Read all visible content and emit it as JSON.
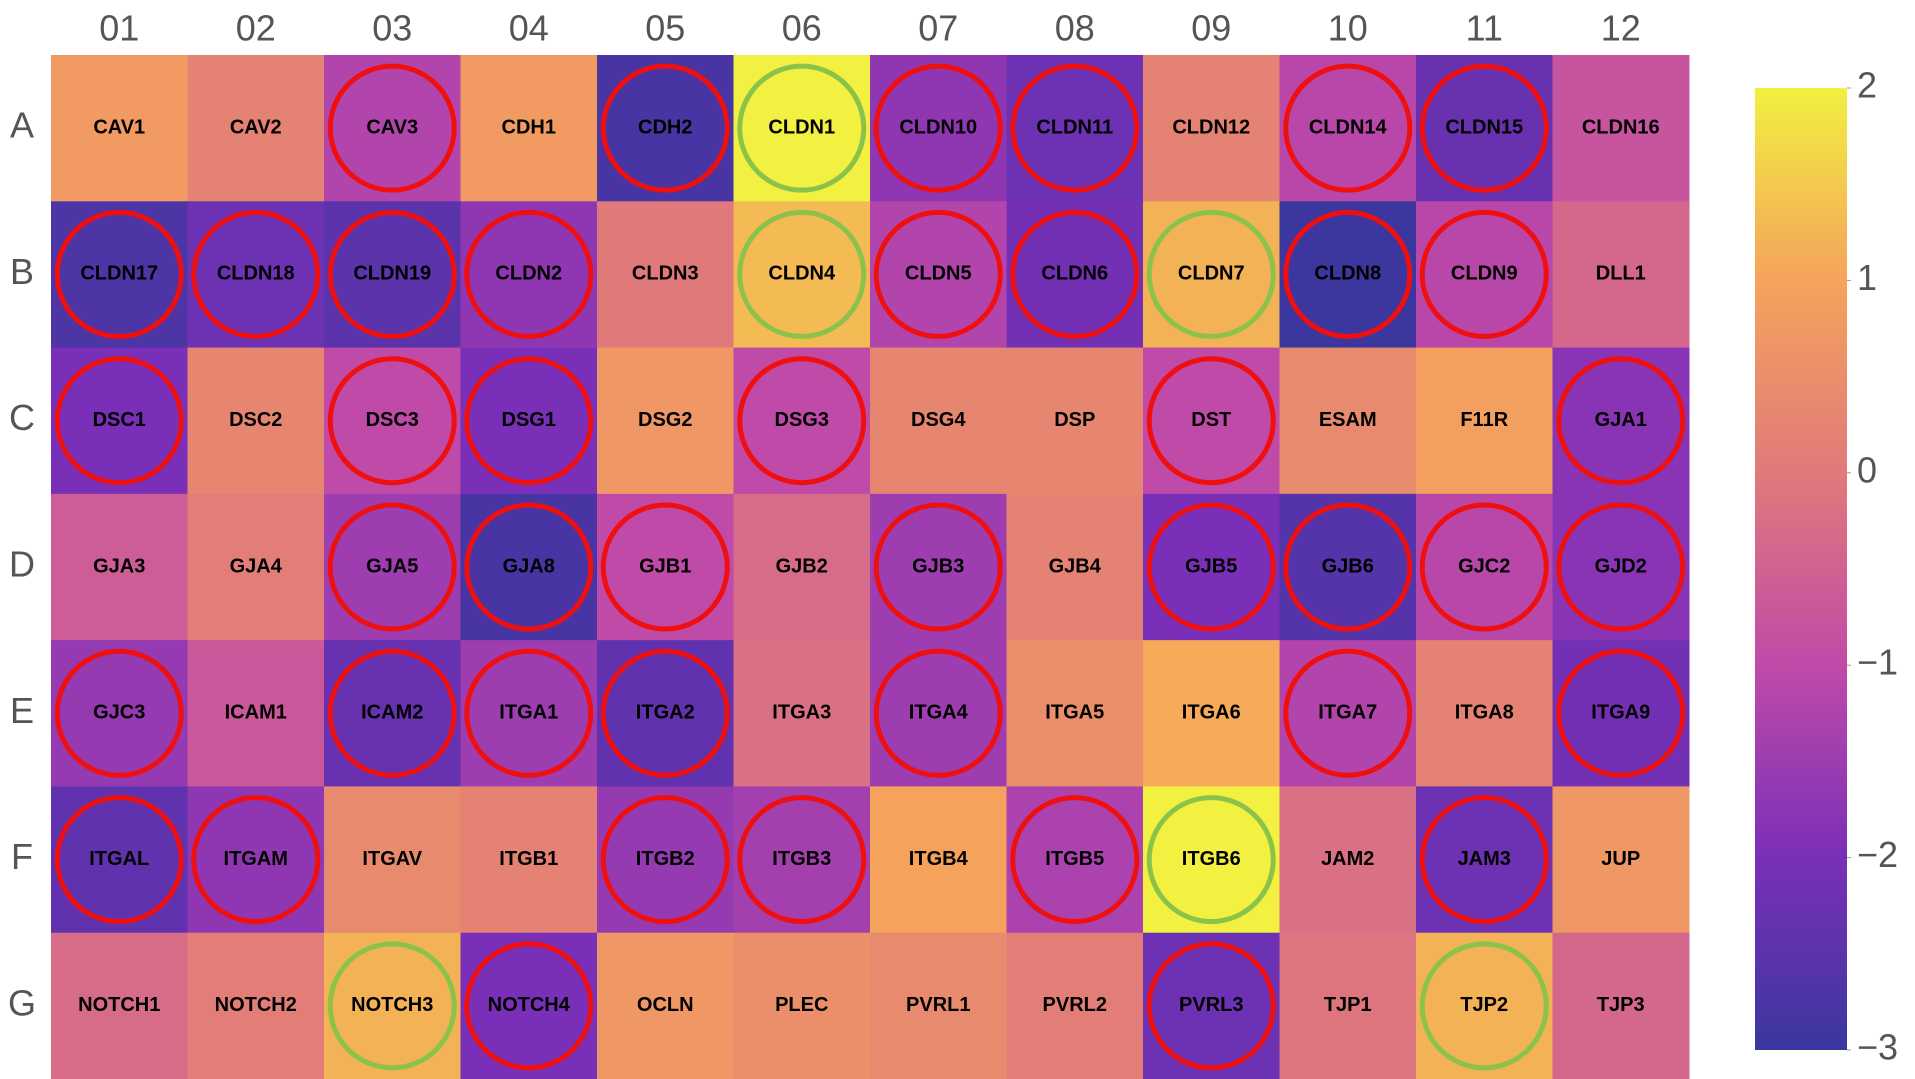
{
  "chart_data": {
    "type": "heatmap",
    "x": [
      "01",
      "02",
      "03",
      "04",
      "05",
      "06",
      "07",
      "08",
      "09",
      "10",
      "11",
      "12"
    ],
    "y": [
      "A",
      "B",
      "C",
      "D",
      "E",
      "F",
      "G"
    ],
    "z": [
      [
        0.8,
        0.2,
        -1.2,
        0.8,
        -2.8,
        2.0,
        -1.7,
        -2.2,
        0.2,
        -1.1,
        -2.3,
        -0.8
      ],
      [
        -2.7,
        -2.2,
        -2.5,
        -1.7,
        0.0,
        1.3,
        -1.2,
        -2.1,
        1.2,
        -3.0,
        -1.1,
        -0.4
      ],
      [
        -2.0,
        0.3,
        -1.0,
        -2.0,
        0.7,
        -1.0,
        0.3,
        0.3,
        -1.0,
        0.4,
        0.9,
        -1.8
      ],
      [
        -0.6,
        0.1,
        -1.5,
        -2.8,
        -1.0,
        -0.3,
        -1.5,
        0.2,
        -2.0,
        -2.6,
        -1.1,
        -1.8
      ],
      [
        -1.6,
        -0.7,
        -2.3,
        -1.5,
        -2.4,
        -0.2,
        -1.5,
        0.5,
        1.1,
        -1.2,
        0.2,
        -2.1
      ],
      [
        -2.4,
        -1.7,
        0.4,
        0.2,
        -1.6,
        -1.4,
        1.0,
        -1.3,
        2.0,
        -0.2,
        -2.2,
        0.7
      ],
      [
        -0.3,
        0.1,
        1.2,
        -2.0,
        0.7,
        0.5,
        0.4,
        0.1,
        -2.2,
        -0.1,
        1.2,
        -0.4
      ]
    ],
    "text": [
      [
        "CAV1",
        "CAV2",
        "CAV3",
        "CDH1",
        "CDH2",
        "CLDN1",
        "CLDN10",
        "CLDN11",
        "CLDN12",
        "CLDN14",
        "CLDN15",
        "CLDN16"
      ],
      [
        "CLDN17",
        "CLDN18",
        "CLDN19",
        "CLDN2",
        "CLDN3",
        "CLDN4",
        "CLDN5",
        "CLDN6",
        "CLDN7",
        "CLDN8",
        "CLDN9",
        "DLL1"
      ],
      [
        "DSC1",
        "DSC2",
        "DSC3",
        "DSG1",
        "DSG2",
        "DSG3",
        "DSG4",
        "DSP",
        "DST",
        "ESAM",
        "F11R",
        "GJA1"
      ],
      [
        "GJA3",
        "GJA4",
        "GJA5",
        "GJA8",
        "GJB1",
        "GJB2",
        "GJB3",
        "GJB4",
        "GJB5",
        "GJB6",
        "GJC2",
        "GJD2"
      ],
      [
        "GJC3",
        "ICAM1",
        "ICAM2",
        "ITGA1",
        "ITGA2",
        "ITGA3",
        "ITGA4",
        "ITGA5",
        "ITGA6",
        "ITGA7",
        "ITGA8",
        "ITGA9"
      ],
      [
        "ITGAL",
        "ITGAM",
        "ITGAV",
        "ITGB1",
        "ITGB2",
        "ITGB3",
        "ITGB4",
        "ITGB5",
        "ITGB6",
        "JAM2",
        "JAM3",
        "JUP"
      ],
      [
        "NOTCH1",
        "NOTCH2",
        "NOTCH3",
        "NOTCH4",
        "OCLN",
        "PLEC",
        "PVRL1",
        "PVRL2",
        "PVRL3",
        "TJP1",
        "TJP2",
        "TJP3"
      ]
    ],
    "circle_colors": [
      [
        null,
        null,
        "#f00f0f",
        null,
        "#f00f0f",
        "#8bc34a",
        "#f00f0f",
        "#f00f0f",
        null,
        "#f00f0f",
        "#f00f0f",
        null
      ],
      [
        "#f00f0f",
        "#f00f0f",
        "#f00f0f",
        "#f00f0f",
        null,
        "#8bc34a",
        "#f00f0f",
        "#f00f0f",
        "#8bc34a",
        "#f00f0f",
        "#f00f0f",
        null
      ],
      [
        "#f00f0f",
        null,
        "#f00f0f",
        "#f00f0f",
        null,
        "#f00f0f",
        null,
        null,
        "#f00f0f",
        null,
        null,
        "#f00f0f"
      ],
      [
        null,
        null,
        "#f00f0f",
        "#f00f0f",
        "#f00f0f",
        null,
        "#f00f0f",
        null,
        "#f00f0f",
        "#f00f0f",
        "#f00f0f",
        "#f00f0f"
      ],
      [
        "#f00f0f",
        null,
        "#f00f0f",
        "#f00f0f",
        "#f00f0f",
        null,
        "#f00f0f",
        null,
        null,
        "#f00f0f",
        null,
        "#f00f0f"
      ],
      [
        "#f00f0f",
        "#f00f0f",
        null,
        null,
        "#f00f0f",
        "#f00f0f",
        null,
        "#f00f0f",
        "#8bc34a",
        null,
        "#f00f0f",
        null
      ],
      [
        null,
        null,
        "#8bc34a",
        "#f00f0f",
        null,
        null,
        null,
        null,
        "#f00f0f",
        null,
        "#8bc34a",
        null
      ]
    ],
    "colorscale": [
      [
        0,
        "#3b379e"
      ],
      [
        0.2,
        "#7a2fb8"
      ],
      [
        0.4,
        "#c04aa8"
      ],
      [
        0.6,
        "#e07a7a"
      ],
      [
        0.8,
        "#f5a35c"
      ],
      [
        1,
        "#f2f040"
      ]
    ],
    "zlim": [
      -3,
      2
    ],
    "colorbar_ticks": [
      2,
      1,
      0,
      {
        "value": -1,
        "label": "−1"
      },
      {
        "value": -2,
        "label": "−2"
      },
      {
        "value": -3,
        "label": "−3"
      }
    ]
  }
}
